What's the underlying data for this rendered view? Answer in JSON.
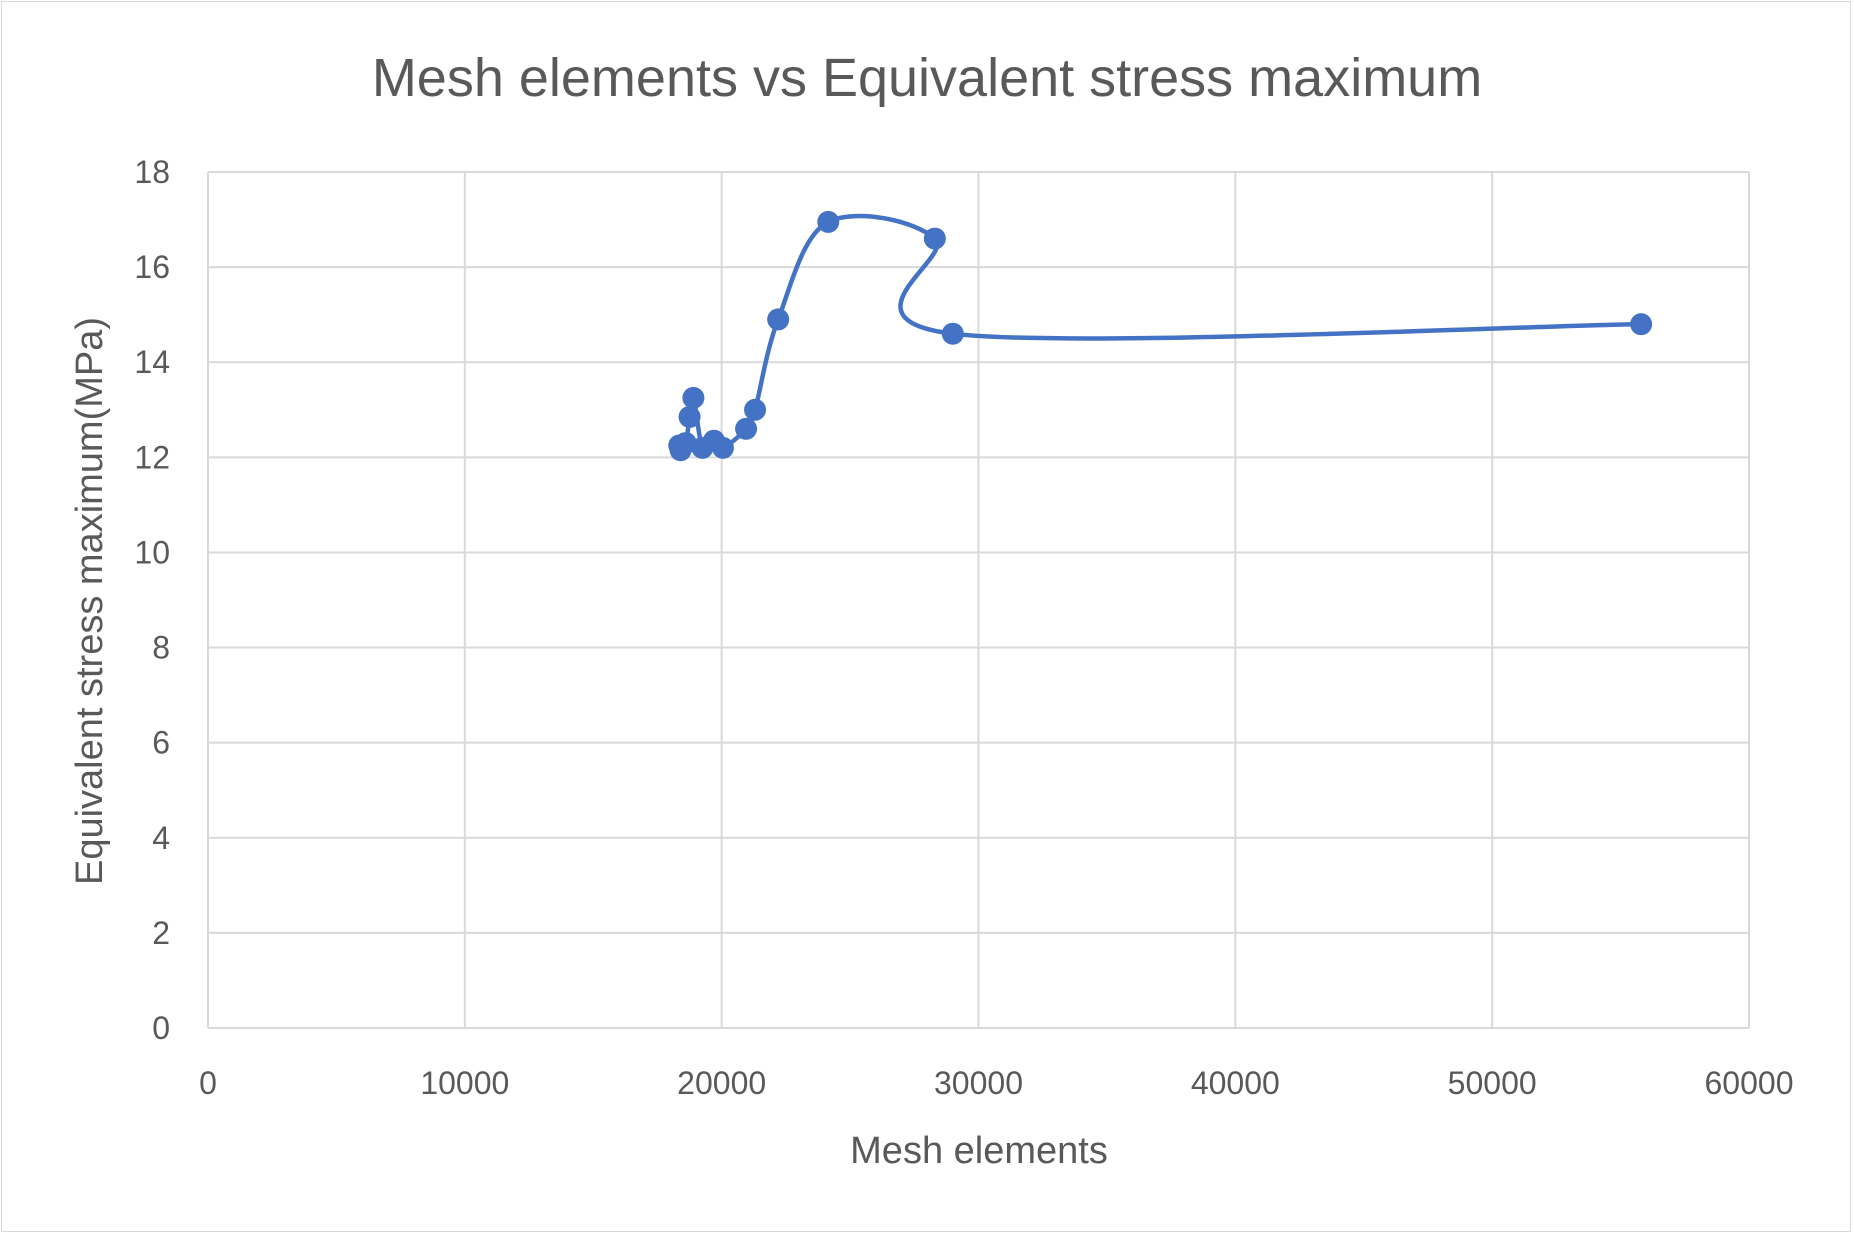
{
  "chart_data": {
    "type": "scatter",
    "title": "Mesh elements vs Equivalent stress maximum",
    "xlabel": "Mesh elements",
    "ylabel": "Equivalent stress maximum(MPa)",
    "xlim": [
      0,
      60000
    ],
    "ylim": [
      0,
      18
    ],
    "xticks": [
      "0",
      "10000",
      "20000",
      "30000",
      "40000",
      "50000",
      "60000"
    ],
    "yticks": [
      "0",
      "2",
      "4",
      "6",
      "8",
      "10",
      "12",
      "14",
      "16",
      "18"
    ],
    "grid": true,
    "line_style": "smooth",
    "series": [
      {
        "color": "#4472c4",
        "points": [
          {
            "x": 18400,
            "y": 12.15
          },
          {
            "x": 18350,
            "y": 12.25
          },
          {
            "x": 18600,
            "y": 12.3
          },
          {
            "x": 18750,
            "y": 12.85
          },
          {
            "x": 18900,
            "y": 13.25
          },
          {
            "x": 19250,
            "y": 12.2
          },
          {
            "x": 19700,
            "y": 12.35
          },
          {
            "x": 20050,
            "y": 12.2
          },
          {
            "x": 20950,
            "y": 12.6
          },
          {
            "x": 21300,
            "y": 13.0
          },
          {
            "x": 22200,
            "y": 14.9
          },
          {
            "x": 24150,
            "y": 16.95
          },
          {
            "x": 28300,
            "y": 16.6
          },
          {
            "x": 29000,
            "y": 14.6
          },
          {
            "x": 55800,
            "y": 14.8
          }
        ]
      }
    ]
  }
}
